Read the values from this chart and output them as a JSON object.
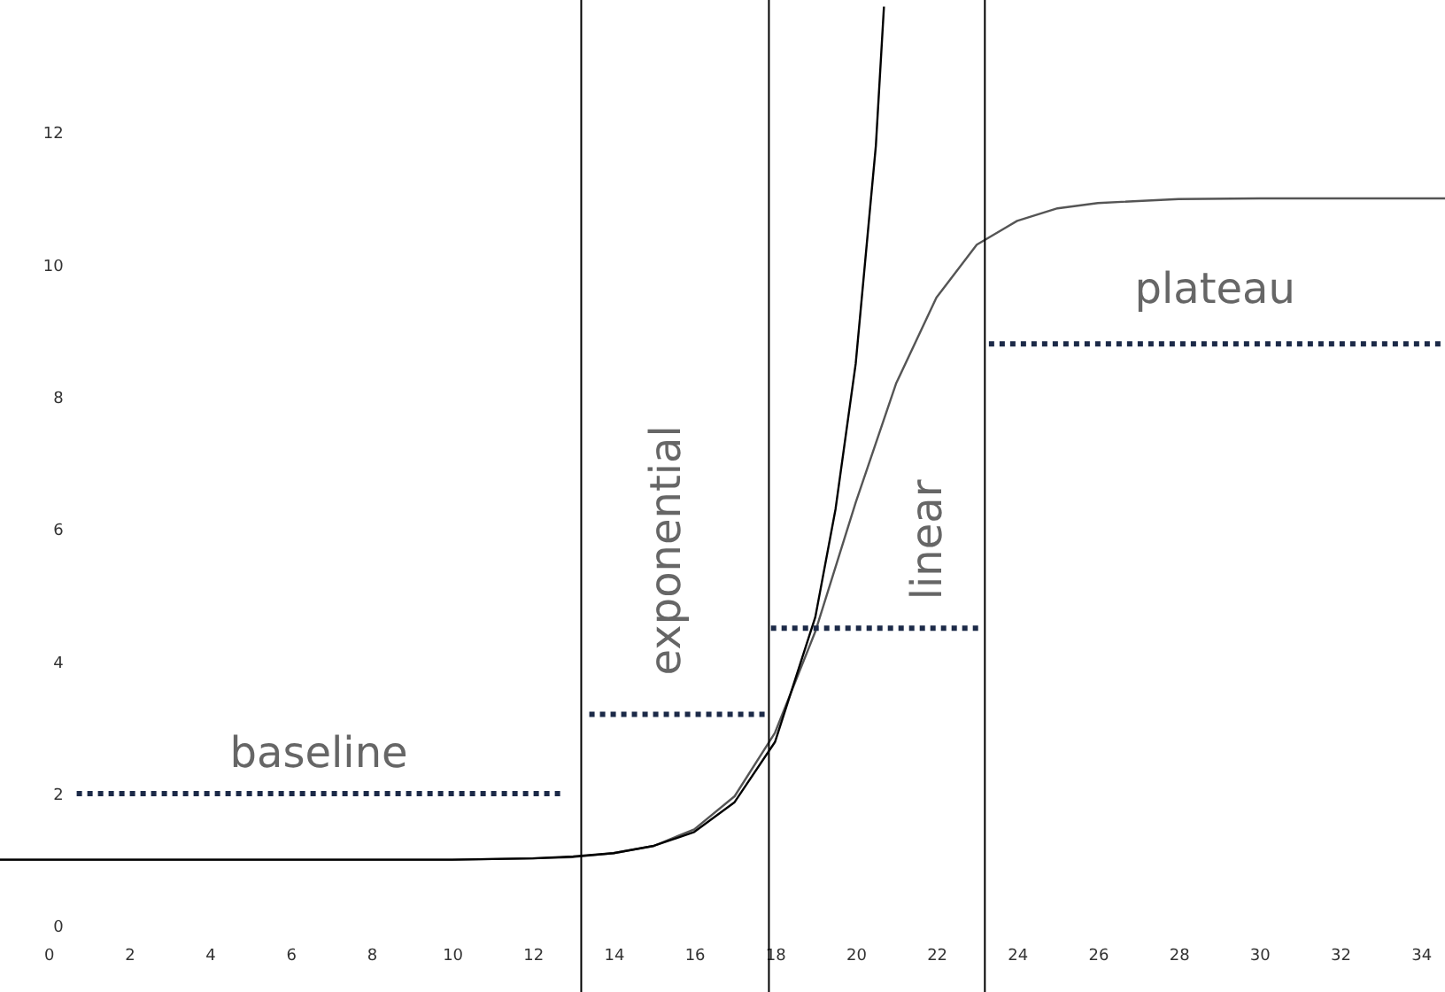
{
  "chart_data": {
    "type": "line",
    "xlim": [
      -1.2,
      34.6
    ],
    "ylim": [
      -1,
      14
    ],
    "xticks": [
      0,
      2,
      4,
      6,
      8,
      10,
      12,
      14,
      16,
      18,
      20,
      22,
      24,
      26,
      28,
      30,
      32,
      34
    ],
    "yticks": [
      0,
      2,
      4,
      6,
      8,
      10,
      12
    ],
    "grid": false,
    "marker": "none",
    "series": [
      {
        "color": "#555555",
        "line_style": "solid",
        "x": [
          -1.2,
          5,
          10,
          12,
          13,
          14,
          15,
          16,
          17,
          18,
          19,
          20,
          21,
          22,
          23,
          24,
          25,
          26,
          28,
          30,
          34.6
        ],
        "values": [
          1.0,
          1.0,
          1.0,
          1.02,
          1.04,
          1.1,
          1.21,
          1.46,
          1.96,
          2.92,
          4.45,
          6.4,
          8.2,
          9.5,
          10.3,
          10.66,
          10.85,
          10.93,
          10.99,
          11.0,
          11.0
        ]
      },
      {
        "color": "#000000",
        "line_style": "solid",
        "x": [
          -1.2,
          5,
          10,
          12,
          13,
          14,
          15,
          16,
          17,
          18,
          19,
          19.5,
          20,
          20.5,
          20.7
        ],
        "values": [
          1.0,
          1.0,
          1.0,
          1.02,
          1.05,
          1.1,
          1.21,
          1.42,
          1.87,
          2.78,
          4.67,
          6.3,
          8.5,
          11.8,
          13.9
        ]
      },
      {
        "color": "#1c2a48",
        "line_style": "dotted",
        "x": [
          0.7,
          12.7
        ],
        "values": [
          2,
          2
        ]
      },
      {
        "color": "#1c2a48",
        "line_style": "dotted",
        "x": [
          13.4,
          17.8
        ],
        "values": [
          3.2,
          3.2
        ]
      },
      {
        "color": "#1c2a48",
        "line_style": "dotted",
        "x": [
          17.9,
          23.1
        ],
        "values": [
          4.5,
          4.5
        ]
      },
      {
        "color": "#1c2a48",
        "line_style": "dotted",
        "x": [
          23.3,
          34.5
        ],
        "values": [
          8.8,
          8.8
        ]
      }
    ],
    "ref_lines": [
      {
        "axis": "x",
        "value": 13.2,
        "color": "#000000"
      },
      {
        "axis": "x",
        "value": 17.85,
        "color": "#000000"
      },
      {
        "axis": "x",
        "value": 23.2,
        "color": "#000000"
      }
    ],
    "annotations": [
      "baseline",
      "exponential",
      "linear",
      "plateau"
    ]
  }
}
